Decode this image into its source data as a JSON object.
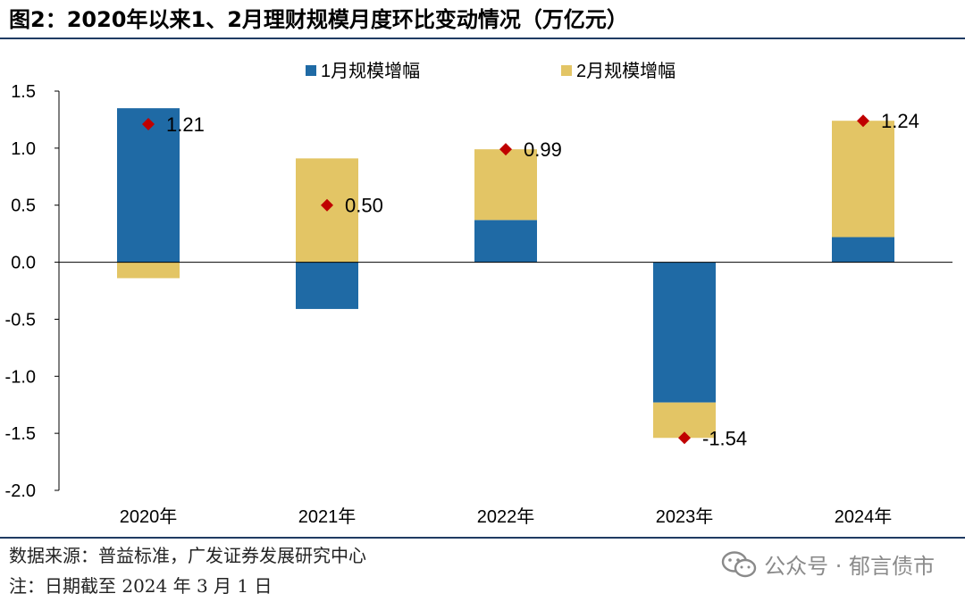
{
  "title": "图2：2020年以来1、2月理财规模月度环比变动情况（万亿元）",
  "chart_data": {
    "type": "bar",
    "stacked": true,
    "categories": [
      "2020年",
      "2021年",
      "2022年",
      "2023年",
      "2024年"
    ],
    "series": [
      {
        "name": "1月规模增幅",
        "color": "#1f6aa5",
        "values": [
          1.35,
          -0.41,
          0.37,
          -1.23,
          0.22
        ]
      },
      {
        "name": "2月规模增幅",
        "color": "#e3c565",
        "values": [
          -0.14,
          0.91,
          0.62,
          -0.31,
          1.02
        ]
      }
    ],
    "totals": {
      "color": "#c00000",
      "values": [
        1.21,
        0.5,
        0.99,
        -1.54,
        1.24
      ],
      "labels": [
        "1.21",
        "0.50",
        "0.99",
        "-1.54",
        "1.24"
      ]
    },
    "ylim": [
      -2.0,
      1.5
    ],
    "yticks": [
      1.5,
      1.0,
      0.5,
      0.0,
      -0.5,
      -1.0,
      -1.5,
      -2.0
    ],
    "ytick_labels": [
      "1.5",
      "1.0",
      "0.5",
      "0.0",
      "-0.5",
      "-1.0",
      "-1.5",
      "-2.0"
    ],
    "legend_position": "top",
    "grid": false
  },
  "footer": {
    "source": "数据来源：普益标准，广发证券发展研究中心",
    "note": "注：日期截至 2024 年 3 月 1 日"
  },
  "watermark": {
    "text": "公众号 · 郁言债市",
    "icon": "wechat-icon"
  }
}
